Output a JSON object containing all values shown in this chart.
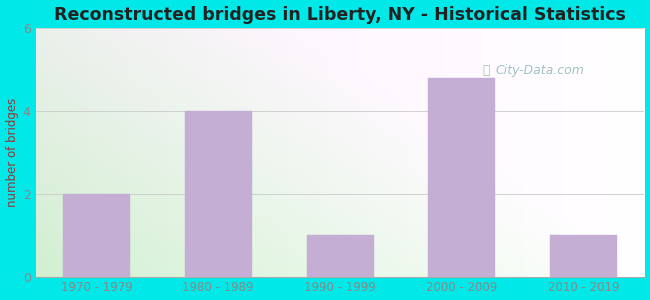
{
  "title": "Reconstructed bridges in Liberty, NY - Historical Statistics",
  "categories": [
    "1970 - 1979",
    "1980 - 1989",
    "1990 - 1999",
    "2000 - 2009",
    "2010 - 2019"
  ],
  "values": [
    2,
    4,
    1,
    4.8,
    1
  ],
  "bar_color": "#c4aed4",
  "bar_edgecolor": "#c4aed4",
  "outer_bg": "#00e8e8",
  "ylabel": "number of bridges",
  "ylabel_color": "#993333",
  "tick_label_color": "#888888",
  "title_color": "#222222",
  "ylim": [
    0,
    6
  ],
  "yticks": [
    0,
    2,
    4,
    6
  ],
  "grid_color": "#cccccc",
  "watermark_text": "City-Data.com",
  "watermark_color": "#90b8b8",
  "bar_width": 0.55
}
